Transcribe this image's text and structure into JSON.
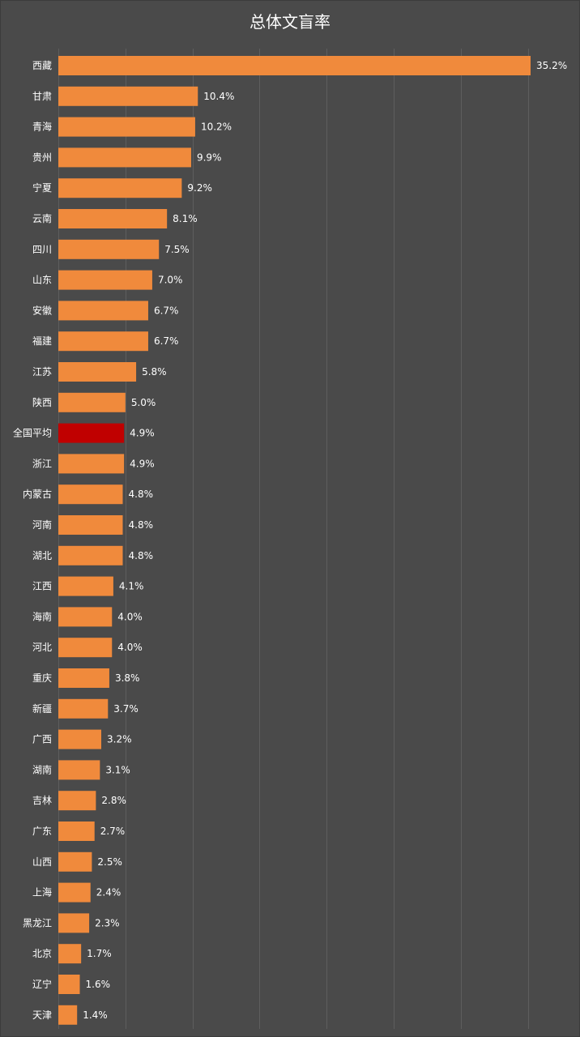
{
  "chart_data": {
    "type": "bar",
    "orientation": "horizontal",
    "title": "总体文盲率",
    "categories": [
      "西藏",
      "甘肃",
      "青海",
      "贵州",
      "宁夏",
      "云南",
      "四川",
      "山东",
      "安徽",
      "福建",
      "江苏",
      "陕西",
      "全国平均",
      "浙江",
      "内蒙古",
      "河南",
      "湖北",
      "江西",
      "海南",
      "河北",
      "重庆",
      "新疆",
      "广西",
      "湖南",
      "吉林",
      "广东",
      "山西",
      "上海",
      "黑龙江",
      "北京",
      "辽宁",
      "天津"
    ],
    "values": [
      35.2,
      10.4,
      10.2,
      9.9,
      9.2,
      8.1,
      7.5,
      7.0,
      6.7,
      6.7,
      5.8,
      5.0,
      4.9,
      4.9,
      4.8,
      4.8,
      4.8,
      4.1,
      4.0,
      4.0,
      3.8,
      3.7,
      3.2,
      3.1,
      2.8,
      2.7,
      2.5,
      2.4,
      2.3,
      1.7,
      1.6,
      1.4
    ],
    "value_labels": [
      "35.2%",
      "10.4%",
      "10.2%",
      "9.9%",
      "9.2%",
      "8.1%",
      "7.5%",
      "7.0%",
      "6.7%",
      "6.7%",
      "5.8%",
      "5.0%",
      "4.9%",
      "4.9%",
      "4.8%",
      "4.8%",
      "4.8%",
      "4.1%",
      "4.0%",
      "4.0%",
      "3.8%",
      "3.7%",
      "3.2%",
      "3.1%",
      "2.8%",
      "2.7%",
      "2.5%",
      "2.4%",
      "2.3%",
      "1.7%",
      "1.6%",
      "1.4%"
    ],
    "xlim": [
      0,
      35.2
    ],
    "grid": true,
    "legend": "none",
    "colors": {
      "bar": "#f08a3c",
      "highlight": "#c00000",
      "background": "#4a4a4a",
      "grid": "#5e5e5e"
    },
    "highlight_category": "全国平均"
  }
}
